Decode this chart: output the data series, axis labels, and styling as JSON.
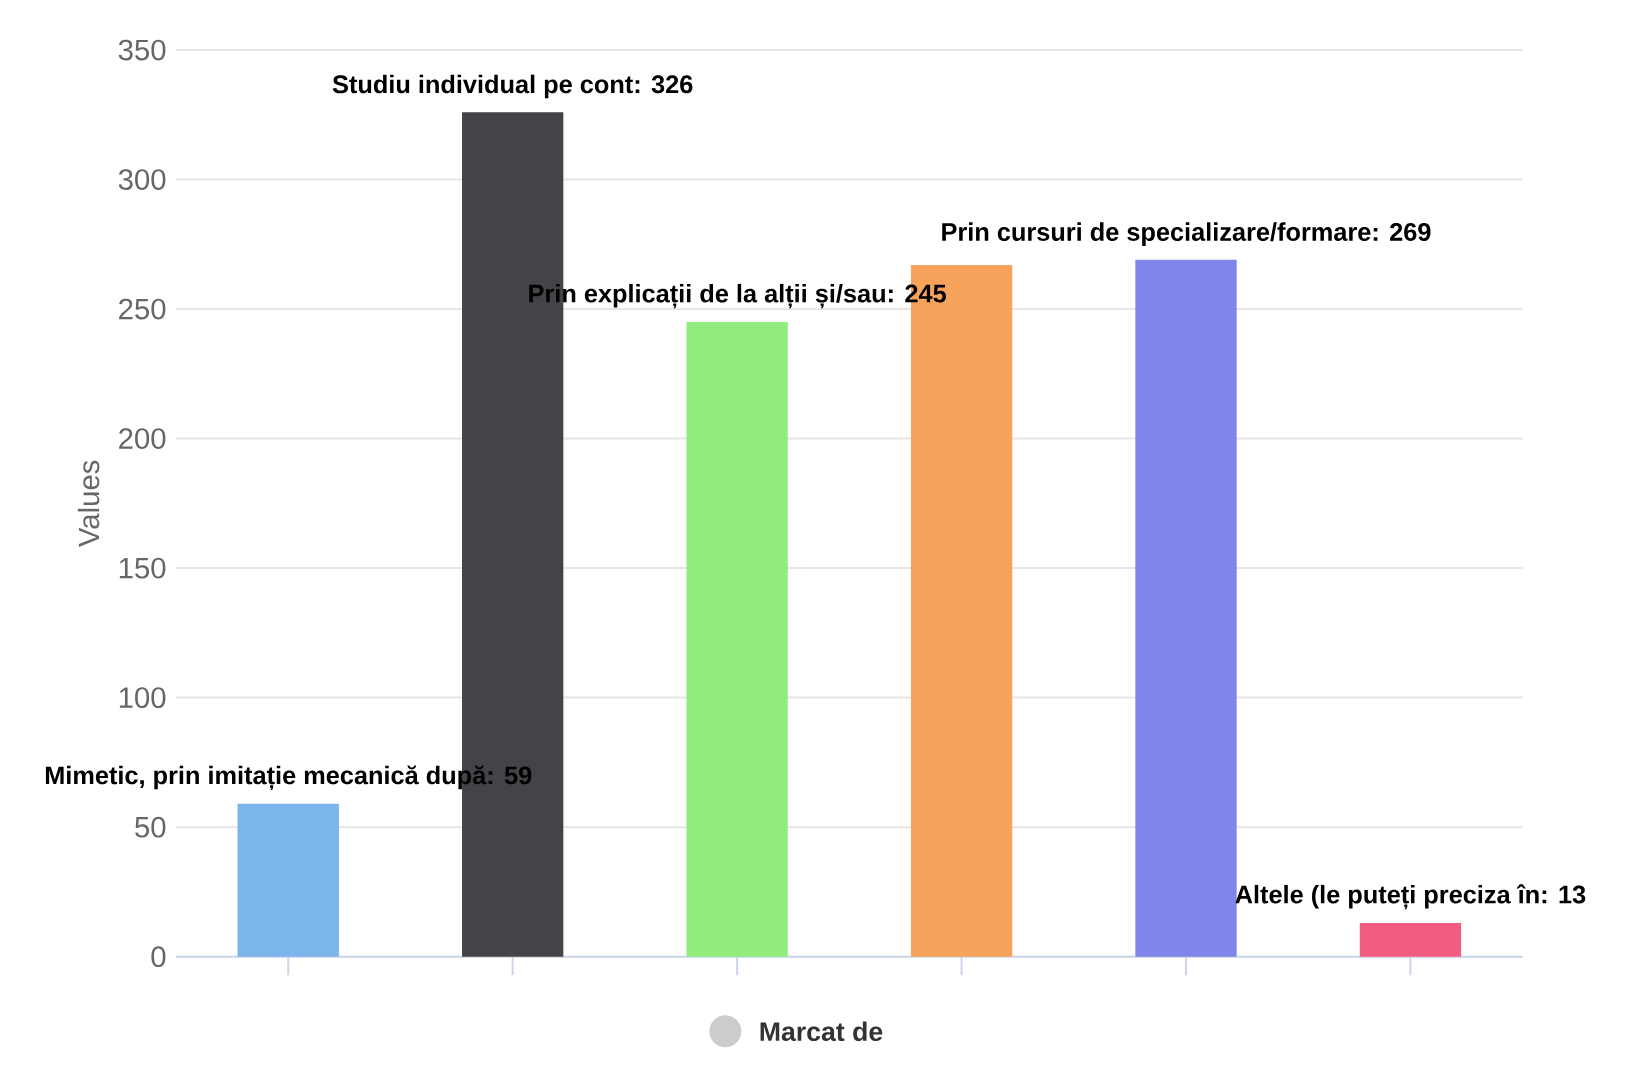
{
  "chart_data": {
    "type": "bar",
    "ylabel": "Values",
    "categories": [
      null,
      null,
      null,
      null,
      null,
      null
    ],
    "series": [
      {
        "name": "Marcat de",
        "color": "#cccccc",
        "values": [
          59,
          326,
          245,
          267,
          269,
          13
        ],
        "colors": [
          "#7cb5ec",
          "#434348",
          "#90ed7d",
          "#f7a35c",
          "#8085e9",
          "#f15c80"
        ],
        "value_labels": [
          "Mimetic, prin imitație mecanică după: 59",
          "Studiu individual pe cont: 326",
          "Prin explicații de la alții și/sau: 245",
          null,
          "Prin cursuri de specializare/formare: 269",
          "Altele (le puteți preciza în: 13"
        ]
      }
    ],
    "ylim": [
      0,
      350
    ],
    "yticks": [
      0,
      50,
      100,
      150,
      200,
      250,
      300,
      350
    ],
    "grid": "y",
    "legend": "bottom"
  }
}
